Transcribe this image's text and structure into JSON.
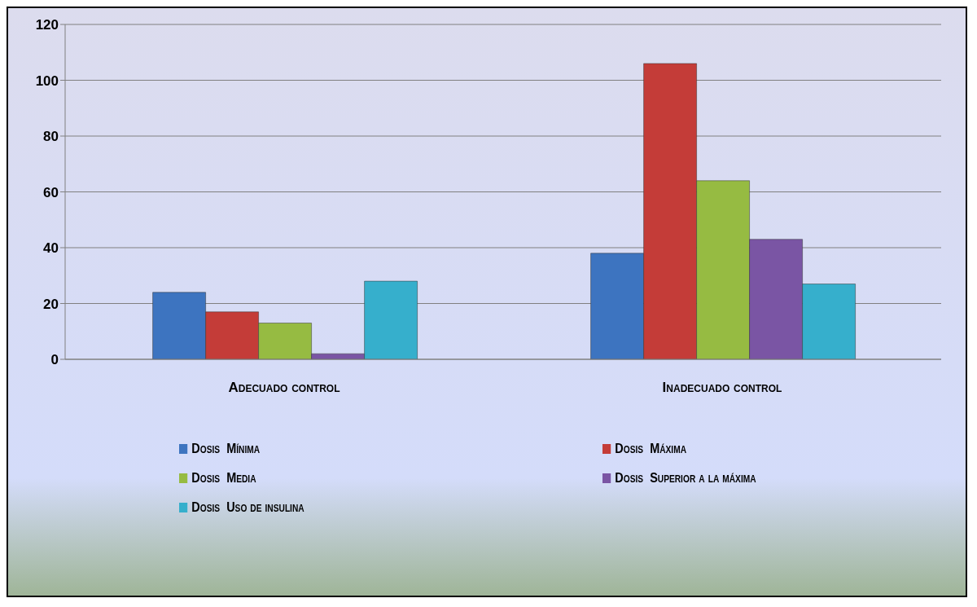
{
  "chart_data": {
    "type": "bar",
    "categories": [
      "Adecuado control",
      "Inadecuado control"
    ],
    "series": [
      {
        "name": "Dosis  Mínima",
        "color": "#3d74c0",
        "values": [
          24,
          38
        ]
      },
      {
        "name": "Dosis  Máxima",
        "color": "#c43c38",
        "values": [
          17,
          106
        ]
      },
      {
        "name": "Dosis  Media",
        "color": "#96bb42",
        "values": [
          13,
          64
        ]
      },
      {
        "name": "Dosis  Superior a la máxima",
        "color": "#7a55a4",
        "values": [
          2,
          43
        ]
      },
      {
        "name": "Dosis  Uso de insulina",
        "color": "#36afcc",
        "values": [
          28,
          27
        ]
      }
    ],
    "ylim": [
      0,
      120
    ],
    "yticks": [
      0,
      20,
      40,
      60,
      80,
      100,
      120
    ],
    "grid": "y",
    "legend": "bottom"
  }
}
